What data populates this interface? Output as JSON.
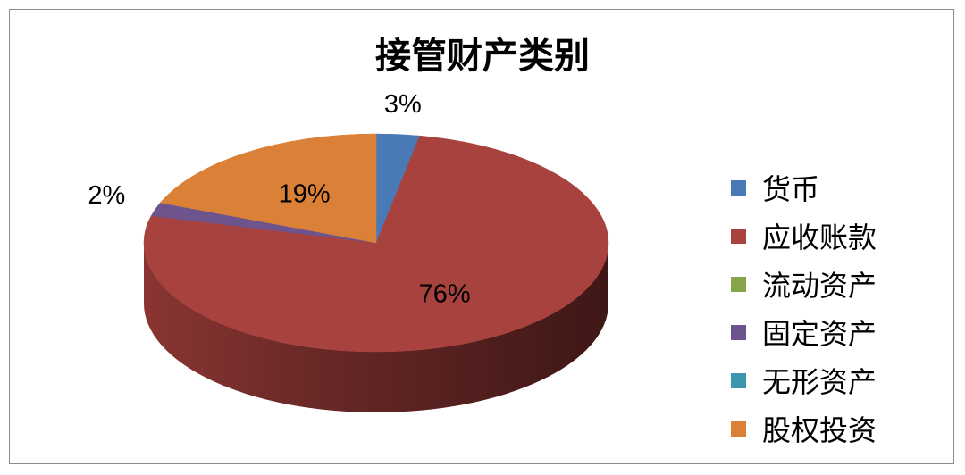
{
  "chart_data": {
    "type": "pie",
    "style": "3d",
    "title": "接管财产类别",
    "legend_position": "right",
    "categories": [
      "货币",
      "应收账款",
      "流动资产",
      "固定资产",
      "无形资产",
      "股权投资"
    ],
    "values": [
      3,
      76,
      0,
      2,
      0,
      19
    ],
    "data_labels": [
      "3%",
      "76%",
      "",
      "2%",
      "",
      "19%"
    ],
    "colors": [
      "#4a7ab5",
      "#a8423f",
      "#86a44a",
      "#6e548d",
      "#3d96ae",
      "#da8137"
    ]
  }
}
